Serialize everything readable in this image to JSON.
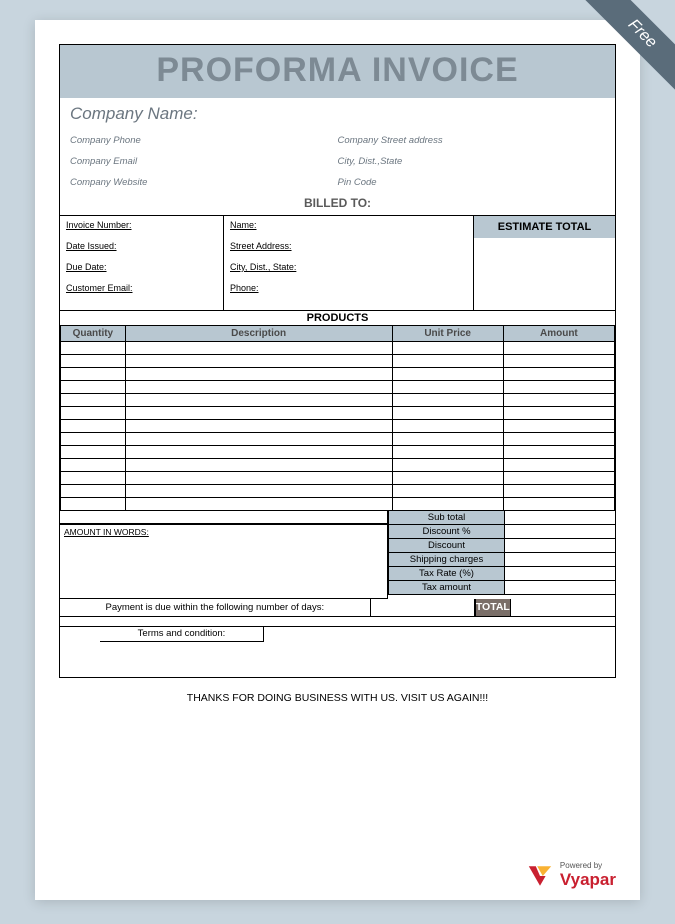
{
  "ribbon": {
    "label": "Free"
  },
  "title": "PROFORMA INVOICE",
  "colors": {
    "page_bg": "#c8d5de",
    "header_bg": "#b8c7d1",
    "header_text": "#7d8a94",
    "muted_text": "#6b7680",
    "ribbon_bg": "#5a6c7a",
    "total_bg": "#7a6e68",
    "border": "#000000",
    "brand_red": "#c92030",
    "brand_yellow": "#f9b233"
  },
  "company": {
    "name_label": "Company Name:",
    "left_labels": [
      "Company Phone",
      "Company Email",
      "Company Website"
    ],
    "right_labels": [
      "Company Street address",
      "City, Dist.,State",
      "Pin Code"
    ]
  },
  "billed_to_label": "BILLED TO:",
  "invoice_fields": {
    "left": [
      "Invoice Number:",
      "Date Issued:",
      "Due Date:",
      "Customer Email:"
    ],
    "mid": [
      "Name:",
      "Street Address:",
      "City, Dist., State:",
      "Phone:"
    ]
  },
  "estimate_total_label": "ESTIMATE TOTAL",
  "products": {
    "section_label": "PRODUCTS",
    "columns": [
      "Quantity",
      "Description",
      "Unit Price",
      "Amount"
    ],
    "row_count": 13
  },
  "amount_in_words_label": "AMOUNT IN WORDS:",
  "summary_rows": [
    "Sub total",
    "Discount %",
    "Discount",
    "Shipping charges",
    "Tax Rate (%)",
    "Tax amount"
  ],
  "total_label": "TOTAL",
  "payment_note": "Payment is due within the following number of days:",
  "terms_label": "Terms and condition:",
  "thanks_message": "THANKS FOR DOING BUSINESS WITH US. VISIT US AGAIN!!!",
  "brand": {
    "powered_by": "Powered by",
    "name": "Vyapar"
  }
}
